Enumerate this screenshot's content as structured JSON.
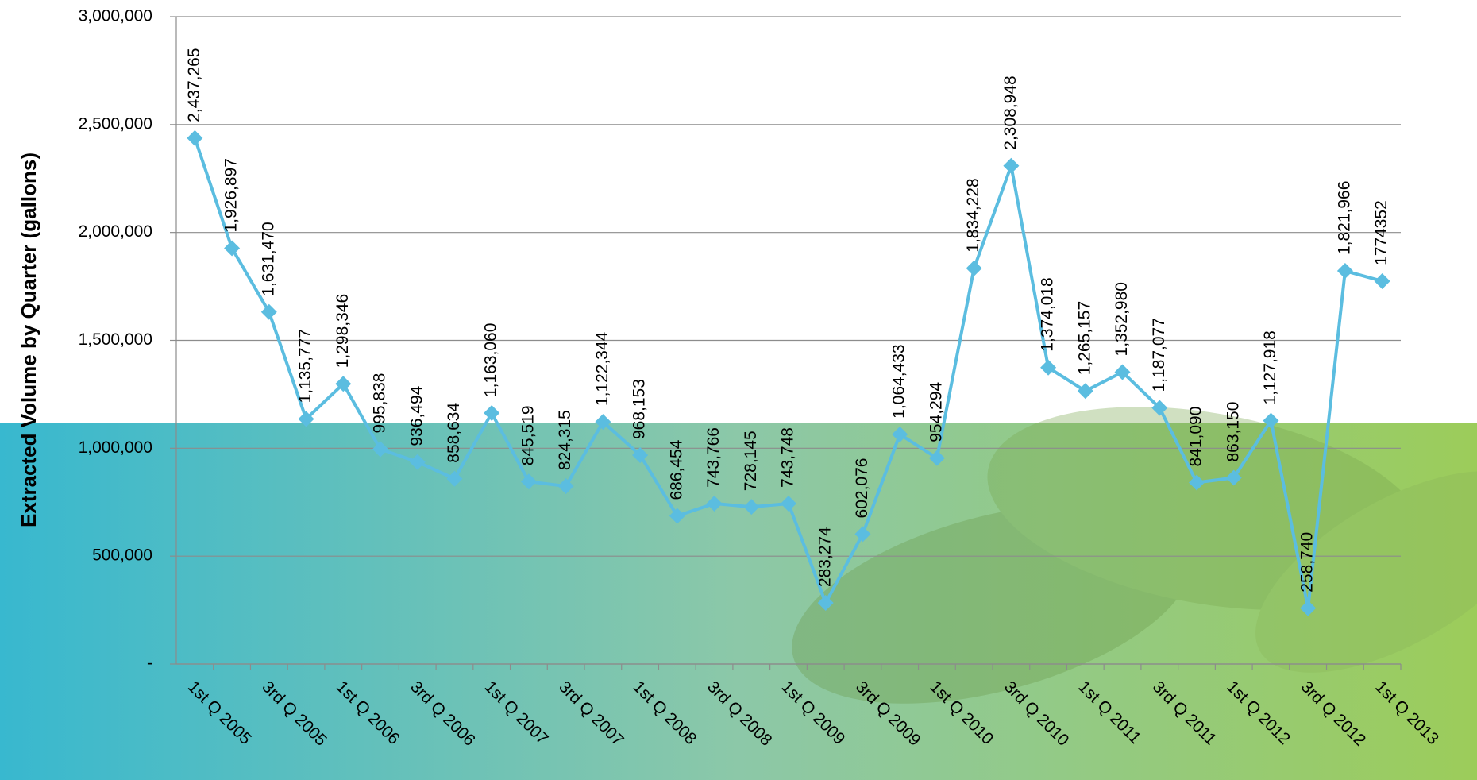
{
  "chart_data": {
    "type": "line",
    "y_label": "Extracted Volume by Quarter (gallons)",
    "categories": [
      "1st Q 2005",
      null,
      "3rd Q 2005",
      null,
      "1st Q 2006",
      null,
      "3rd Q 2006",
      null,
      "1st Q 2007",
      null,
      "3rd Q 2007",
      null,
      "1st Q 2008",
      null,
      "3rd Q 2008",
      null,
      "1st Q 2009",
      null,
      "3rd Q 2009",
      null,
      "1st Q 2010",
      null,
      "3rd Q 2010",
      null,
      "1st Q 2011",
      null,
      "3rd Q 2011",
      null,
      "1st Q 2012",
      null,
      "3rd Q 2012",
      null,
      "1st Q 2013"
    ],
    "series": [
      {
        "color": "#5bbde0",
        "values": [
          2437265,
          1926897,
          1631470,
          1135777,
          1298346,
          995838,
          936494,
          858634,
          1163060,
          845519,
          824315,
          1122344,
          968153,
          686454,
          743766,
          728145,
          743748,
          283274,
          602076,
          1064433,
          954294,
          1834228,
          2308948,
          1374018,
          1265157,
          1352980,
          1187077,
          841090,
          863150,
          1127918,
          258740,
          1821966,
          1774352
        ],
        "value_labels": [
          "2,437,265",
          "1,926,897",
          "1,631,470",
          "1,135,777",
          "1,298,346",
          "995,838",
          "936,494",
          "858,634",
          "1,163,060",
          "845,519",
          "824,315",
          "1,122,344",
          "968,153",
          "686,454",
          "743,766",
          "728,145",
          "743,748",
          "283,274",
          "602,076",
          "1,064,433",
          "954,294",
          "1,834,228",
          "2,308,948",
          "1,374,018",
          "1,265,157",
          "1,352,980",
          "1,187,077",
          "841,090",
          "863,150",
          "1,127,918",
          "258,740",
          "1,821,966",
          "1774352"
        ]
      }
    ],
    "ylim": [
      0,
      3000000
    ],
    "yticks": [
      {
        "value": 0,
        "label": "-"
      },
      {
        "value": 500000,
        "label": "500,000"
      },
      {
        "value": 1000000,
        "label": "1,000,000"
      },
      {
        "value": 1500000,
        "label": "1,500,000"
      },
      {
        "value": 2000000,
        "label": "2,000,000"
      },
      {
        "value": 2500000,
        "label": "2,500,000"
      },
      {
        "value": 3000000,
        "label": "3,000,000"
      }
    ],
    "grid": true
  }
}
